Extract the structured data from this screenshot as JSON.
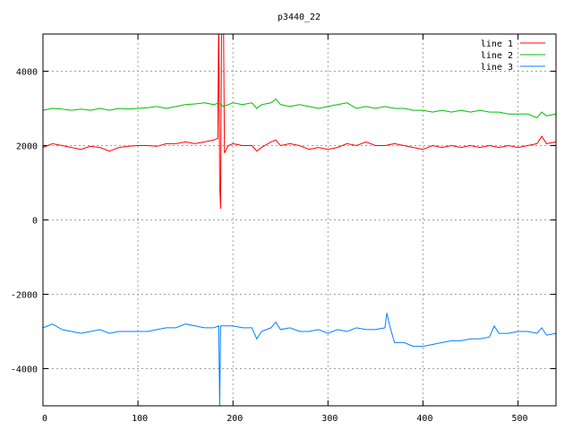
{
  "chart_data": {
    "type": "line",
    "title": "p3440_22",
    "xlabel": "",
    "ylabel": "",
    "xlim": [
      0,
      540
    ],
    "ylim": [
      -5000,
      5000
    ],
    "xticks": [
      0,
      100,
      200,
      300,
      400,
      500
    ],
    "yticks": [
      -4000,
      -2000,
      0,
      2000,
      4000
    ],
    "grid": true,
    "legend_position": "top-right",
    "series": [
      {
        "name": "line 1",
        "color": "#ff0000",
        "x": [
          0,
          10,
          20,
          30,
          40,
          50,
          60,
          70,
          80,
          90,
          100,
          110,
          120,
          130,
          140,
          150,
          160,
          170,
          180,
          184,
          185,
          186,
          187,
          188,
          189,
          190,
          191,
          195,
          200,
          210,
          220,
          225,
          230,
          240,
          245,
          250,
          260,
          270,
          280,
          290,
          300,
          310,
          320,
          330,
          340,
          350,
          360,
          370,
          380,
          390,
          400,
          410,
          420,
          430,
          440,
          450,
          460,
          470,
          480,
          490,
          500,
          510,
          520,
          525,
          530,
          540
        ],
        "values": [
          1950,
          2050,
          2000,
          1950,
          1900,
          1980,
          1950,
          1850,
          1950,
          1980,
          2000,
          2000,
          1980,
          2050,
          2050,
          2100,
          2050,
          2100,
          2150,
          2200,
          5500,
          900,
          300,
          5500,
          5500,
          5500,
          1800,
          2000,
          2050,
          2000,
          2000,
          1850,
          1950,
          2100,
          2150,
          2000,
          2050,
          2000,
          1900,
          1950,
          1900,
          1950,
          2050,
          2000,
          2100,
          2000,
          2000,
          2050,
          2000,
          1950,
          1900,
          2000,
          1950,
          2000,
          1950,
          2000,
          1950,
          2000,
          1950,
          2000,
          1950,
          2000,
          2050,
          2250,
          2050,
          2100
        ]
      },
      {
        "name": "line 2",
        "color": "#00c000",
        "x": [
          0,
          10,
          20,
          30,
          40,
          50,
          60,
          70,
          80,
          90,
          100,
          110,
          120,
          130,
          140,
          150,
          160,
          170,
          180,
          185,
          190,
          200,
          210,
          220,
          225,
          230,
          240,
          245,
          250,
          260,
          270,
          280,
          290,
          300,
          310,
          320,
          330,
          340,
          350,
          360,
          370,
          380,
          390,
          400,
          410,
          420,
          430,
          440,
          450,
          460,
          470,
          480,
          490,
          500,
          510,
          520,
          525,
          530,
          540
        ],
        "values": [
          2950,
          3000,
          2980,
          2950,
          2980,
          2950,
          3000,
          2950,
          3000,
          2980,
          3000,
          3020,
          3050,
          3000,
          3050,
          3100,
          3120,
          3150,
          3100,
          3150,
          3050,
          3150,
          3100,
          3150,
          3000,
          3100,
          3150,
          3250,
          3100,
          3050,
          3100,
          3050,
          3000,
          3050,
          3100,
          3150,
          3000,
          3050,
          3000,
          3050,
          3000,
          3000,
          2950,
          2950,
          2900,
          2950,
          2900,
          2950,
          2900,
          2950,
          2900,
          2900,
          2850,
          2850,
          2850,
          2750,
          2900,
          2800,
          2850
        ]
      },
      {
        "name": "line 3",
        "color": "#0080ff",
        "x": [
          0,
          10,
          20,
          30,
          40,
          50,
          60,
          70,
          80,
          90,
          100,
          110,
          120,
          130,
          140,
          150,
          160,
          170,
          180,
          185,
          186,
          187,
          190,
          200,
          210,
          220,
          225,
          230,
          240,
          245,
          250,
          260,
          270,
          280,
          290,
          300,
          310,
          320,
          330,
          340,
          350,
          360,
          362,
          365,
          370,
          380,
          390,
          400,
          410,
          420,
          430,
          440,
          450,
          460,
          470,
          475,
          480,
          490,
          500,
          510,
          520,
          525,
          530,
          540
        ],
        "values": [
          -2900,
          -2800,
          -2950,
          -3000,
          -3050,
          -3000,
          -2950,
          -3050,
          -3000,
          -3000,
          -3000,
          -3000,
          -2950,
          -2900,
          -2900,
          -2800,
          -2850,
          -2900,
          -2900,
          -2850,
          -5000,
          -2850,
          -2850,
          -2850,
          -2900,
          -2900,
          -3200,
          -3000,
          -2900,
          -2750,
          -2950,
          -2900,
          -3000,
          -3000,
          -2950,
          -3050,
          -2950,
          -3000,
          -2900,
          -2950,
          -2950,
          -2900,
          -2500,
          -2850,
          -3300,
          -3300,
          -3400,
          -3400,
          -3350,
          -3300,
          -3250,
          -3250,
          -3200,
          -3200,
          -3150,
          -2850,
          -3050,
          -3050,
          -3000,
          -3000,
          -3050,
          -2900,
          -3100,
          -3050
        ]
      }
    ]
  }
}
